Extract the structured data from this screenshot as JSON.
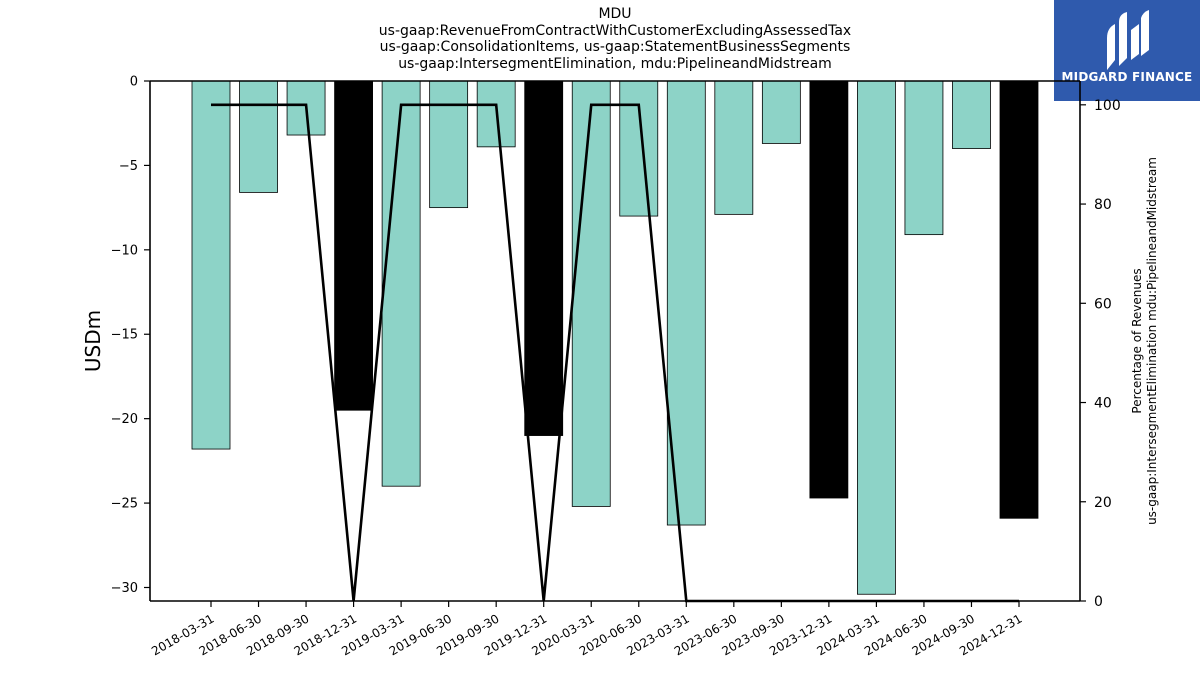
{
  "chart_data": {
    "type": "bar",
    "title_lines": [
      "MDU",
      "us-gaap:RevenueFromContractWithCustomerExcludingAssessedTax",
      "us-gaap:ConsolidationItems, us-gaap:StatementBusinessSegments",
      "us-gaap:IntersegmentElimination, mdu:PipelineandMidstream"
    ],
    "ylabel": "USDm",
    "y2label_lines": [
      "Percentage of Revenues",
      "us-gaap:IntersegmentElimination mdu:PipelineandMidstream"
    ],
    "ylim": [
      -30.8,
      0
    ],
    "yticks": [
      0,
      -5,
      -10,
      -15,
      -20,
      -25,
      -30
    ],
    "y2lim": [
      0,
      104.8
    ],
    "y2ticks": [
      0,
      20,
      40,
      60,
      80,
      100
    ],
    "categories": [
      "2018-03-31",
      "2018-06-30",
      "2018-09-30",
      "2018-12-31",
      "2019-03-31",
      "2019-06-30",
      "2019-09-30",
      "2019-12-31",
      "2020-03-31",
      "2020-06-30",
      "2023-03-31",
      "2023-06-30",
      "2023-09-30",
      "2023-12-31",
      "2024-03-31",
      "2024-06-30",
      "2024-09-30",
      "2024-12-31"
    ],
    "series": [
      {
        "type": "bar",
        "values": [
          -21.8,
          -6.6,
          -3.2,
          -19.5,
          -24.0,
          -7.5,
          -3.9,
          -21.0,
          -25.2,
          -8.0,
          -26.3,
          -7.9,
          -3.7,
          -24.7,
          -30.4,
          -9.1,
          -4.0,
          -25.9
        ],
        "colors": [
          "#8dd3c7",
          "#8dd3c7",
          "#8dd3c7",
          "#000000",
          "#8dd3c7",
          "#8dd3c7",
          "#8dd3c7",
          "#000000",
          "#8dd3c7",
          "#8dd3c7",
          "#8dd3c7",
          "#8dd3c7",
          "#8dd3c7",
          "#000000",
          "#8dd3c7",
          "#8dd3c7",
          "#8dd3c7",
          "#000000"
        ]
      },
      {
        "type": "line",
        "axis": "right",
        "color": "#000000",
        "values": [
          100,
          100,
          100,
          0,
          100,
          100,
          100,
          0,
          100,
          100,
          0,
          0,
          0,
          0,
          0,
          0,
          0,
          0
        ]
      }
    ],
    "grid": false,
    "legend": "none"
  },
  "logo": {
    "text": "MIDGARD FINANCE",
    "color": "#2f5aad"
  }
}
